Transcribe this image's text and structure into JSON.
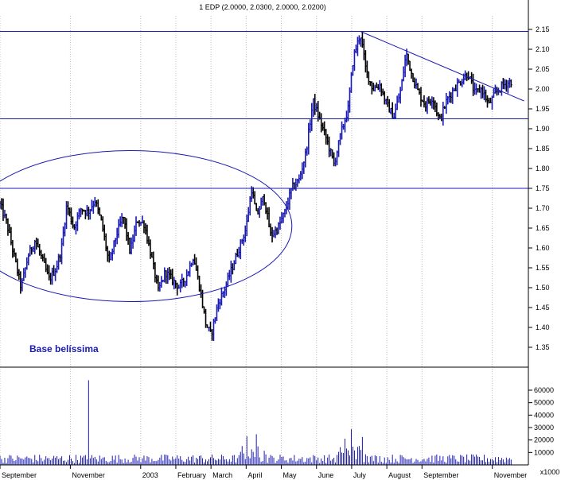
{
  "chart_data": {
    "type": "ohlc",
    "title": "1 EDP (2.0000, 2.0300, 2.0000, 2.0200)",
    "price_axis": {
      "ticks": [
        "2.15",
        "2.10",
        "2.05",
        "2.00",
        "1.95",
        "1.90",
        "1.85",
        "1.80",
        "1.75",
        "1.70",
        "1.65",
        "1.60",
        "1.55",
        "1.50",
        "1.45",
        "1.40",
        "1.35"
      ],
      "range": [
        1.32,
        2.18
      ]
    },
    "volume_axis": {
      "ticks": [
        "60000",
        "50000",
        "40000",
        "30000",
        "20000",
        "10000"
      ],
      "unit_label": "x1000",
      "range": [
        0,
        75000
      ]
    },
    "x_axis": {
      "labels": [
        "September",
        "November",
        "2003",
        "February",
        "March",
        "April",
        "May",
        "June",
        "July",
        "August",
        "September",
        "November"
      ],
      "positions": [
        0,
        2,
        4,
        5,
        6,
        7,
        8,
        9,
        10,
        11,
        12,
        14
      ],
      "range": [
        0,
        14.55
      ]
    },
    "price_series": [
      {
        "t": 0.0,
        "p": 1.71
      },
      {
        "t": 0.2,
        "p": 1.66
      },
      {
        "t": 0.4,
        "p": 1.58
      },
      {
        "t": 0.6,
        "p": 1.5
      },
      {
        "t": 0.8,
        "p": 1.58
      },
      {
        "t": 1.0,
        "p": 1.62
      },
      {
        "t": 1.2,
        "p": 1.57
      },
      {
        "t": 1.4,
        "p": 1.52
      },
      {
        "t": 1.6,
        "p": 1.55
      },
      {
        "t": 1.75,
        "p": 1.6
      },
      {
        "t": 1.9,
        "p": 1.71
      },
      {
        "t": 2.1,
        "p": 1.65
      },
      {
        "t": 2.3,
        "p": 1.7
      },
      {
        "t": 2.5,
        "p": 1.69
      },
      {
        "t": 2.7,
        "p": 1.72
      },
      {
        "t": 2.9,
        "p": 1.66
      },
      {
        "t": 3.1,
        "p": 1.56
      },
      {
        "t": 3.3,
        "p": 1.63
      },
      {
        "t": 3.5,
        "p": 1.68
      },
      {
        "t": 3.7,
        "p": 1.59
      },
      {
        "t": 3.9,
        "p": 1.67
      },
      {
        "t": 4.1,
        "p": 1.66
      },
      {
        "t": 4.3,
        "p": 1.58
      },
      {
        "t": 4.5,
        "p": 1.49
      },
      {
        "t": 4.7,
        "p": 1.54
      },
      {
        "t": 4.9,
        "p": 1.52
      },
      {
        "t": 5.1,
        "p": 1.5
      },
      {
        "t": 5.3,
        "p": 1.53
      },
      {
        "t": 5.5,
        "p": 1.58
      },
      {
        "t": 5.7,
        "p": 1.49
      },
      {
        "t": 5.85,
        "p": 1.41
      },
      {
        "t": 6.0,
        "p": 1.38
      },
      {
        "t": 6.2,
        "p": 1.46
      },
      {
        "t": 6.4,
        "p": 1.5
      },
      {
        "t": 6.6,
        "p": 1.55
      },
      {
        "t": 6.8,
        "p": 1.6
      },
      {
        "t": 7.0,
        "p": 1.65
      },
      {
        "t": 7.15,
        "p": 1.75
      },
      {
        "t": 7.3,
        "p": 1.68
      },
      {
        "t": 7.5,
        "p": 1.73
      },
      {
        "t": 7.7,
        "p": 1.63
      },
      {
        "t": 7.9,
        "p": 1.65
      },
      {
        "t": 8.1,
        "p": 1.69
      },
      {
        "t": 8.3,
        "p": 1.75
      },
      {
        "t": 8.5,
        "p": 1.77
      },
      {
        "t": 8.7,
        "p": 1.84
      },
      {
        "t": 8.9,
        "p": 1.97
      },
      {
        "t": 9.1,
        "p": 1.92
      },
      {
        "t": 9.3,
        "p": 1.87
      },
      {
        "t": 9.5,
        "p": 1.81
      },
      {
        "t": 9.7,
        "p": 1.89
      },
      {
        "t": 9.9,
        "p": 1.95
      },
      {
        "t": 10.05,
        "p": 2.08
      },
      {
        "t": 10.25,
        "p": 2.14
      },
      {
        "t": 10.4,
        "p": 2.05
      },
      {
        "t": 10.6,
        "p": 2.0
      },
      {
        "t": 10.8,
        "p": 2.01
      },
      {
        "t": 11.0,
        "p": 1.96
      },
      {
        "t": 11.2,
        "p": 1.93
      },
      {
        "t": 11.4,
        "p": 2.0
      },
      {
        "t": 11.55,
        "p": 2.09
      },
      {
        "t": 11.7,
        "p": 2.04
      },
      {
        "t": 11.9,
        "p": 1.99
      },
      {
        "t": 12.1,
        "p": 1.96
      },
      {
        "t": 12.3,
        "p": 1.98
      },
      {
        "t": 12.5,
        "p": 1.92
      },
      {
        "t": 12.7,
        "p": 1.97
      },
      {
        "t": 12.9,
        "p": 2.0
      },
      {
        "t": 13.1,
        "p": 2.02
      },
      {
        "t": 13.3,
        "p": 2.04
      },
      {
        "t": 13.5,
        "p": 1.99
      },
      {
        "t": 13.7,
        "p": 2.0
      },
      {
        "t": 13.9,
        "p": 1.96
      },
      {
        "t": 14.1,
        "p": 1.99
      },
      {
        "t": 14.3,
        "p": 2.01
      },
      {
        "t": 14.55,
        "p": 2.02
      }
    ],
    "volume_spikes": [
      {
        "t": 2.5,
        "v": 68000
      },
      {
        "t": 7.0,
        "v": 21000
      },
      {
        "t": 7.3,
        "v": 16000
      },
      {
        "t": 9.8,
        "v": 18000
      },
      {
        "t": 10.0,
        "v": 20000
      },
      {
        "t": 10.3,
        "v": 22000
      }
    ],
    "annotations": {
      "label": "Base belíssima",
      "horizontal_lines": [
        2.145,
        1.925,
        1.75
      ],
      "trendline": [
        {
          "t": 10.25,
          "p": 2.145
        },
        {
          "t": 14.9,
          "p": 1.97
        }
      ],
      "ellipse": {
        "t_center": 3.7,
        "t_radius": 4.6,
        "p_center": 1.655,
        "p_radius": 0.19
      }
    },
    "colors": {
      "up": "#1a1ab4",
      "down": "#000000",
      "lines": "#1a1ab4",
      "grid": "#bbbbbb"
    },
    "grid": "vertical dotted"
  }
}
